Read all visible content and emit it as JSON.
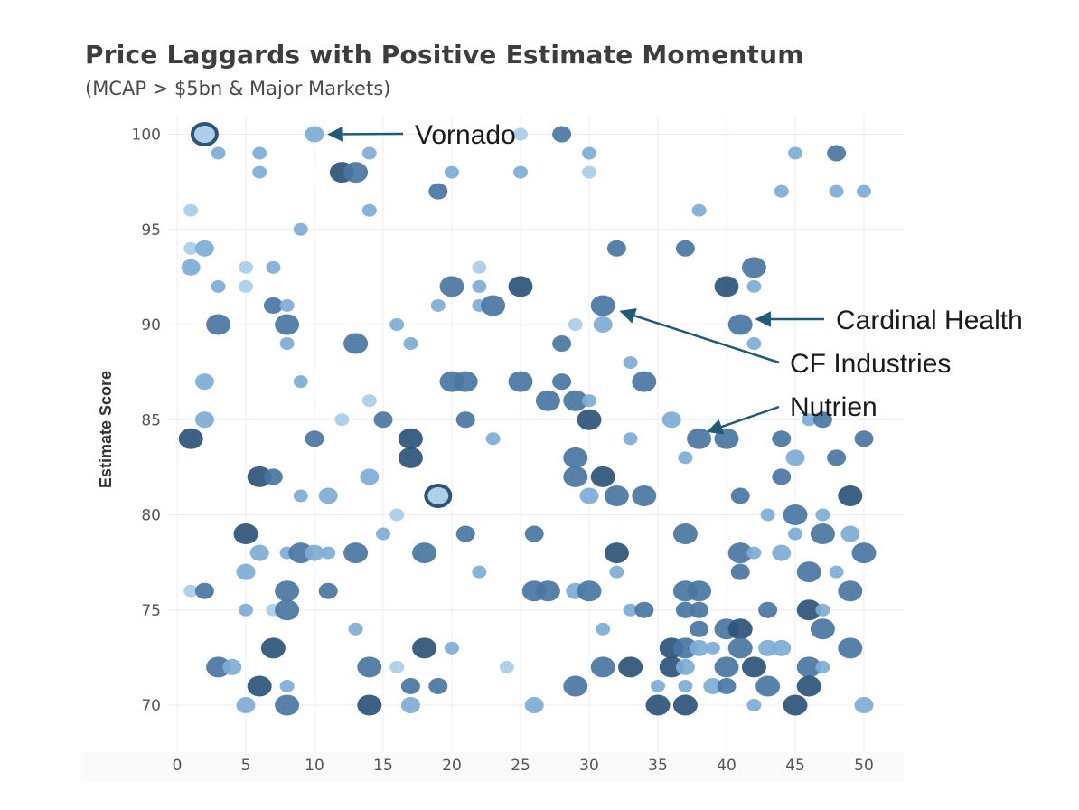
{
  "colors": {
    "light": "#a8cde8",
    "mid": "#7eadd6",
    "dark": "#4a76a3",
    "darkest": "#2b5478",
    "arrow": "#1f5a78",
    "grid": "#ececec"
  },
  "chart_data": {
    "type": "scatter",
    "title": "Price Laggards with Positive Estimate Momentum",
    "subtitle": "(MCAP > $5bn & Major Markets)",
    "xlabel": "",
    "ylabel": "Estimate Score",
    "xlim": [
      0,
      52
    ],
    "ylim": [
      67,
      102
    ],
    "xticks": [
      0,
      5,
      10,
      15,
      20,
      25,
      30,
      35,
      40,
      45,
      50
    ],
    "yticks": [
      70,
      75,
      80,
      85,
      90,
      95,
      100
    ],
    "grid": true,
    "points": [
      {
        "x": 2,
        "y": 100,
        "c": 2,
        "r": 2,
        "ring": true
      },
      {
        "x": 10,
        "y": 100,
        "c": 1,
        "r": 1
      },
      {
        "x": 25,
        "y": 100,
        "c": 0,
        "r": 0
      },
      {
        "x": 28,
        "y": 100,
        "c": 2,
        "r": 1
      },
      {
        "x": 3,
        "y": 99,
        "c": 1,
        "r": 0
      },
      {
        "x": 6,
        "y": 99,
        "c": 1,
        "r": 0
      },
      {
        "x": 14,
        "y": 99,
        "c": 1,
        "r": 0
      },
      {
        "x": 30,
        "y": 99,
        "c": 1,
        "r": 0
      },
      {
        "x": 45,
        "y": 99,
        "c": 1,
        "r": 0
      },
      {
        "x": 48,
        "y": 99,
        "c": 2,
        "r": 1
      },
      {
        "x": 6,
        "y": 98,
        "c": 1,
        "r": 0
      },
      {
        "x": 12,
        "y": 98,
        "c": 3,
        "r": 2
      },
      {
        "x": 13,
        "y": 98,
        "c": 2,
        "r": 2
      },
      {
        "x": 20,
        "y": 98,
        "c": 1,
        "r": 0
      },
      {
        "x": 25,
        "y": 98,
        "c": 1,
        "r": 0
      },
      {
        "x": 30,
        "y": 98,
        "c": 0,
        "r": 0
      },
      {
        "x": 19,
        "y": 97,
        "c": 2,
        "r": 1
      },
      {
        "x": 44,
        "y": 97,
        "c": 1,
        "r": 0
      },
      {
        "x": 48,
        "y": 97,
        "c": 1,
        "r": 0
      },
      {
        "x": 50,
        "y": 97,
        "c": 1,
        "r": 0
      },
      {
        "x": 1,
        "y": 96,
        "c": 0,
        "r": 0
      },
      {
        "x": 14,
        "y": 96,
        "c": 1,
        "r": 0
      },
      {
        "x": 38,
        "y": 96,
        "c": 1,
        "r": 0
      },
      {
        "x": 9,
        "y": 95,
        "c": 1,
        "r": 0
      },
      {
        "x": 1,
        "y": 94,
        "c": 0,
        "r": 0
      },
      {
        "x": 2,
        "y": 94,
        "c": 1,
        "r": 1
      },
      {
        "x": 32,
        "y": 94,
        "c": 2,
        "r": 1
      },
      {
        "x": 37,
        "y": 94,
        "c": 2,
        "r": 1
      },
      {
        "x": 1,
        "y": 93,
        "c": 1,
        "r": 1
      },
      {
        "x": 5,
        "y": 93,
        "c": 0,
        "r": 0
      },
      {
        "x": 7,
        "y": 93,
        "c": 1,
        "r": 0
      },
      {
        "x": 22,
        "y": 93,
        "c": 0,
        "r": 0
      },
      {
        "x": 42,
        "y": 93,
        "c": 2,
        "r": 2
      },
      {
        "x": 3,
        "y": 92,
        "c": 1,
        "r": 0
      },
      {
        "x": 5,
        "y": 92,
        "c": 0,
        "r": 0
      },
      {
        "x": 20,
        "y": 92,
        "c": 2,
        "r": 2
      },
      {
        "x": 22,
        "y": 92,
        "c": 1,
        "r": 0
      },
      {
        "x": 25,
        "y": 92,
        "c": 3,
        "r": 2
      },
      {
        "x": 40,
        "y": 92,
        "c": 3,
        "r": 2
      },
      {
        "x": 42,
        "y": 92,
        "c": 1,
        "r": 0
      },
      {
        "x": 7,
        "y": 91,
        "c": 2,
        "r": 1
      },
      {
        "x": 8,
        "y": 91,
        "c": 1,
        "r": 0
      },
      {
        "x": 19,
        "y": 91,
        "c": 1,
        "r": 0
      },
      {
        "x": 22,
        "y": 91,
        "c": 1,
        "r": 0
      },
      {
        "x": 23,
        "y": 91,
        "c": 2,
        "r": 2
      },
      {
        "x": 31,
        "y": 91,
        "c": 2,
        "r": 2
      },
      {
        "x": 3,
        "y": 90,
        "c": 2,
        "r": 2
      },
      {
        "x": 8,
        "y": 90,
        "c": 2,
        "r": 2
      },
      {
        "x": 16,
        "y": 90,
        "c": 1,
        "r": 0
      },
      {
        "x": 29,
        "y": 90,
        "c": 0,
        "r": 0
      },
      {
        "x": 31,
        "y": 90,
        "c": 1,
        "r": 1
      },
      {
        "x": 41,
        "y": 90,
        "c": 2,
        "r": 2
      },
      {
        "x": 8,
        "y": 89,
        "c": 1,
        "r": 0
      },
      {
        "x": 13,
        "y": 89,
        "c": 2,
        "r": 2
      },
      {
        "x": 17,
        "y": 89,
        "c": 1,
        "r": 0
      },
      {
        "x": 28,
        "y": 89,
        "c": 2,
        "r": 1
      },
      {
        "x": 42,
        "y": 89,
        "c": 1,
        "r": 0
      },
      {
        "x": 33,
        "y": 88,
        "c": 1,
        "r": 0
      },
      {
        "x": 2,
        "y": 87,
        "c": 1,
        "r": 1
      },
      {
        "x": 9,
        "y": 87,
        "c": 1,
        "r": 0
      },
      {
        "x": 20,
        "y": 87,
        "c": 2,
        "r": 2
      },
      {
        "x": 21,
        "y": 87,
        "c": 2,
        "r": 2
      },
      {
        "x": 25,
        "y": 87,
        "c": 2,
        "r": 2
      },
      {
        "x": 28,
        "y": 87,
        "c": 2,
        "r": 1
      },
      {
        "x": 34,
        "y": 87,
        "c": 2,
        "r": 2
      },
      {
        "x": 14,
        "y": 86,
        "c": 0,
        "r": 0
      },
      {
        "x": 27,
        "y": 86,
        "c": 2,
        "r": 2
      },
      {
        "x": 29,
        "y": 86,
        "c": 2,
        "r": 2
      },
      {
        "x": 30,
        "y": 86,
        "c": 1,
        "r": 0
      },
      {
        "x": 2,
        "y": 85,
        "c": 1,
        "r": 1
      },
      {
        "x": 12,
        "y": 85,
        "c": 0,
        "r": 0
      },
      {
        "x": 15,
        "y": 85,
        "c": 2,
        "r": 1
      },
      {
        "x": 21,
        "y": 85,
        "c": 2,
        "r": 1
      },
      {
        "x": 30,
        "y": 85,
        "c": 3,
        "r": 2
      },
      {
        "x": 36,
        "y": 85,
        "c": 1,
        "r": 1
      },
      {
        "x": 46,
        "y": 85,
        "c": 1,
        "r": 0
      },
      {
        "x": 47,
        "y": 85,
        "c": 2,
        "r": 1
      },
      {
        "x": 1,
        "y": 84,
        "c": 3,
        "r": 2
      },
      {
        "x": 10,
        "y": 84,
        "c": 2,
        "r": 1
      },
      {
        "x": 17,
        "y": 84,
        "c": 3,
        "r": 2
      },
      {
        "x": 23,
        "y": 84,
        "c": 1,
        "r": 0
      },
      {
        "x": 33,
        "y": 84,
        "c": 1,
        "r": 0
      },
      {
        "x": 38,
        "y": 84,
        "c": 2,
        "r": 2
      },
      {
        "x": 40,
        "y": 84,
        "c": 2,
        "r": 2
      },
      {
        "x": 44,
        "y": 84,
        "c": 2,
        "r": 1
      },
      {
        "x": 50,
        "y": 84,
        "c": 2,
        "r": 1
      },
      {
        "x": 17,
        "y": 83,
        "c": 3,
        "r": 2
      },
      {
        "x": 29,
        "y": 83,
        "c": 2,
        "r": 2
      },
      {
        "x": 37,
        "y": 83,
        "c": 1,
        "r": 0
      },
      {
        "x": 45,
        "y": 83,
        "c": 1,
        "r": 1
      },
      {
        "x": 48,
        "y": 83,
        "c": 2,
        "r": 1
      },
      {
        "x": 6,
        "y": 82,
        "c": 3,
        "r": 2
      },
      {
        "x": 7,
        "y": 82,
        "c": 2,
        "r": 1
      },
      {
        "x": 14,
        "y": 82,
        "c": 1,
        "r": 1
      },
      {
        "x": 29,
        "y": 82,
        "c": 2,
        "r": 2
      },
      {
        "x": 31,
        "y": 82,
        "c": 3,
        "r": 2
      },
      {
        "x": 44,
        "y": 82,
        "c": 2,
        "r": 1
      },
      {
        "x": 9,
        "y": 81,
        "c": 1,
        "r": 0
      },
      {
        "x": 11,
        "y": 81,
        "c": 1,
        "r": 1
      },
      {
        "x": 19,
        "y": 81,
        "c": 2,
        "r": 2,
        "ring": true
      },
      {
        "x": 30,
        "y": 81,
        "c": 1,
        "r": 1
      },
      {
        "x": 32,
        "y": 81,
        "c": 2,
        "r": 2
      },
      {
        "x": 34,
        "y": 81,
        "c": 2,
        "r": 2
      },
      {
        "x": 41,
        "y": 81,
        "c": 2,
        "r": 1
      },
      {
        "x": 49,
        "y": 81,
        "c": 3,
        "r": 2
      },
      {
        "x": 16,
        "y": 80,
        "c": 0,
        "r": 0
      },
      {
        "x": 43,
        "y": 80,
        "c": 1,
        "r": 0
      },
      {
        "x": 45,
        "y": 80,
        "c": 2,
        "r": 2
      },
      {
        "x": 47,
        "y": 80,
        "c": 1,
        "r": 0
      },
      {
        "x": 5,
        "y": 79,
        "c": 3,
        "r": 2
      },
      {
        "x": 15,
        "y": 79,
        "c": 1,
        "r": 0
      },
      {
        "x": 21,
        "y": 79,
        "c": 2,
        "r": 1
      },
      {
        "x": 26,
        "y": 79,
        "c": 2,
        "r": 1
      },
      {
        "x": 37,
        "y": 79,
        "c": 2,
        "r": 2
      },
      {
        "x": 45,
        "y": 79,
        "c": 1,
        "r": 0
      },
      {
        "x": 47,
        "y": 79,
        "c": 2,
        "r": 2
      },
      {
        "x": 49,
        "y": 79,
        "c": 1,
        "r": 1
      },
      {
        "x": 6,
        "y": 78,
        "c": 1,
        "r": 1
      },
      {
        "x": 8,
        "y": 78,
        "c": 1,
        "r": 0
      },
      {
        "x": 9,
        "y": 78,
        "c": 2,
        "r": 2
      },
      {
        "x": 10,
        "y": 78,
        "c": 1,
        "r": 1
      },
      {
        "x": 11,
        "y": 78,
        "c": 1,
        "r": 0
      },
      {
        "x": 13,
        "y": 78,
        "c": 2,
        "r": 2
      },
      {
        "x": 18,
        "y": 78,
        "c": 2,
        "r": 2
      },
      {
        "x": 32,
        "y": 78,
        "c": 3,
        "r": 2
      },
      {
        "x": 41,
        "y": 78,
        "c": 2,
        "r": 2
      },
      {
        "x": 42,
        "y": 78,
        "c": 1,
        "r": 0
      },
      {
        "x": 44,
        "y": 78,
        "c": 1,
        "r": 1
      },
      {
        "x": 50,
        "y": 78,
        "c": 2,
        "r": 2
      },
      {
        "x": 5,
        "y": 77,
        "c": 1,
        "r": 1
      },
      {
        "x": 22,
        "y": 77,
        "c": 1,
        "r": 0
      },
      {
        "x": 32,
        "y": 77,
        "c": 1,
        "r": 0
      },
      {
        "x": 41,
        "y": 77,
        "c": 2,
        "r": 1
      },
      {
        "x": 46,
        "y": 77,
        "c": 2,
        "r": 2
      },
      {
        "x": 48,
        "y": 77,
        "c": 1,
        "r": 0
      },
      {
        "x": 1,
        "y": 76,
        "c": 0,
        "r": 0
      },
      {
        "x": 2,
        "y": 76,
        "c": 2,
        "r": 1
      },
      {
        "x": 8,
        "y": 76,
        "c": 2,
        "r": 2
      },
      {
        "x": 11,
        "y": 76,
        "c": 2,
        "r": 1
      },
      {
        "x": 26,
        "y": 76,
        "c": 2,
        "r": 2
      },
      {
        "x": 27,
        "y": 76,
        "c": 2,
        "r": 2
      },
      {
        "x": 29,
        "y": 76,
        "c": 1,
        "r": 1
      },
      {
        "x": 30,
        "y": 76,
        "c": 2,
        "r": 2
      },
      {
        "x": 37,
        "y": 76,
        "c": 2,
        "r": 2
      },
      {
        "x": 38,
        "y": 76,
        "c": 2,
        "r": 2
      },
      {
        "x": 49,
        "y": 76,
        "c": 2,
        "r": 2
      },
      {
        "x": 5,
        "y": 75,
        "c": 1,
        "r": 0
      },
      {
        "x": 7,
        "y": 75,
        "c": 0,
        "r": 0
      },
      {
        "x": 8,
        "y": 75,
        "c": 2,
        "r": 2
      },
      {
        "x": 33,
        "y": 75,
        "c": 1,
        "r": 0
      },
      {
        "x": 34,
        "y": 75,
        "c": 2,
        "r": 1
      },
      {
        "x": 37,
        "y": 75,
        "c": 2,
        "r": 1
      },
      {
        "x": 38,
        "y": 75,
        "c": 2,
        "r": 1
      },
      {
        "x": 43,
        "y": 75,
        "c": 2,
        "r": 1
      },
      {
        "x": 46,
        "y": 75,
        "c": 3,
        "r": 2
      },
      {
        "x": 47,
        "y": 75,
        "c": 1,
        "r": 0
      },
      {
        "x": 13,
        "y": 74,
        "c": 1,
        "r": 0
      },
      {
        "x": 31,
        "y": 74,
        "c": 1,
        "r": 0
      },
      {
        "x": 38,
        "y": 74,
        "c": 2,
        "r": 1
      },
      {
        "x": 40,
        "y": 74,
        "c": 2,
        "r": 2
      },
      {
        "x": 41,
        "y": 74,
        "c": 3,
        "r": 2
      },
      {
        "x": 47,
        "y": 74,
        "c": 2,
        "r": 2
      },
      {
        "x": 7,
        "y": 73,
        "c": 3,
        "r": 2
      },
      {
        "x": 18,
        "y": 73,
        "c": 3,
        "r": 2
      },
      {
        "x": 20,
        "y": 73,
        "c": 1,
        "r": 0
      },
      {
        "x": 36,
        "y": 73,
        "c": 3,
        "r": 2
      },
      {
        "x": 37,
        "y": 73,
        "c": 2,
        "r": 2
      },
      {
        "x": 38,
        "y": 73,
        "c": 1,
        "r": 1
      },
      {
        "x": 39,
        "y": 73,
        "c": 1,
        "r": 0
      },
      {
        "x": 41,
        "y": 73,
        "c": 2,
        "r": 2
      },
      {
        "x": 43,
        "y": 73,
        "c": 1,
        "r": 1
      },
      {
        "x": 44,
        "y": 73,
        "c": 1,
        "r": 1
      },
      {
        "x": 49,
        "y": 73,
        "c": 2,
        "r": 2
      },
      {
        "x": 3,
        "y": 72,
        "c": 2,
        "r": 2
      },
      {
        "x": 4,
        "y": 72,
        "c": 1,
        "r": 1
      },
      {
        "x": 14,
        "y": 72,
        "c": 2,
        "r": 2
      },
      {
        "x": 16,
        "y": 72,
        "c": 0,
        "r": 0
      },
      {
        "x": 24,
        "y": 72,
        "c": 0,
        "r": 0
      },
      {
        "x": 31,
        "y": 72,
        "c": 2,
        "r": 2
      },
      {
        "x": 33,
        "y": 72,
        "c": 3,
        "r": 2
      },
      {
        "x": 36,
        "y": 72,
        "c": 3,
        "r": 2
      },
      {
        "x": 37,
        "y": 72,
        "c": 1,
        "r": 1
      },
      {
        "x": 40,
        "y": 72,
        "c": 2,
        "r": 2
      },
      {
        "x": 42,
        "y": 72,
        "c": 3,
        "r": 2
      },
      {
        "x": 46,
        "y": 72,
        "c": 2,
        "r": 2
      },
      {
        "x": 47,
        "y": 72,
        "c": 1,
        "r": 0
      },
      {
        "x": 6,
        "y": 71,
        "c": 3,
        "r": 2
      },
      {
        "x": 8,
        "y": 71,
        "c": 1,
        "r": 0
      },
      {
        "x": 17,
        "y": 71,
        "c": 2,
        "r": 1
      },
      {
        "x": 19,
        "y": 71,
        "c": 2,
        "r": 1
      },
      {
        "x": 29,
        "y": 71,
        "c": 2,
        "r": 2
      },
      {
        "x": 35,
        "y": 71,
        "c": 1,
        "r": 0
      },
      {
        "x": 37,
        "y": 71,
        "c": 1,
        "r": 0
      },
      {
        "x": 39,
        "y": 71,
        "c": 1,
        "r": 1
      },
      {
        "x": 40,
        "y": 71,
        "c": 2,
        "r": 1
      },
      {
        "x": 43,
        "y": 71,
        "c": 2,
        "r": 2
      },
      {
        "x": 46,
        "y": 71,
        "c": 3,
        "r": 2
      },
      {
        "x": 5,
        "y": 70,
        "c": 1,
        "r": 1
      },
      {
        "x": 8,
        "y": 70,
        "c": 2,
        "r": 2
      },
      {
        "x": 14,
        "y": 70,
        "c": 3,
        "r": 2
      },
      {
        "x": 17,
        "y": 70,
        "c": 1,
        "r": 1
      },
      {
        "x": 26,
        "y": 70,
        "c": 1,
        "r": 1
      },
      {
        "x": 35,
        "y": 70,
        "c": 3,
        "r": 2
      },
      {
        "x": 37,
        "y": 70,
        "c": 3,
        "r": 2
      },
      {
        "x": 42,
        "y": 70,
        "c": 1,
        "r": 0
      },
      {
        "x": 45,
        "y": 70,
        "c": 3,
        "r": 2
      },
      {
        "x": 50,
        "y": 70,
        "c": 1,
        "r": 1
      }
    ],
    "annotations": [
      {
        "label": "Vornado",
        "x": 10,
        "y": 100
      },
      {
        "label": "Cardinal Health",
        "x": 41,
        "y": 90
      },
      {
        "label": "CF Industries",
        "x": 31,
        "y": 90.5
      },
      {
        "label": "Nutrien",
        "x": 38,
        "y": 84
      }
    ]
  }
}
